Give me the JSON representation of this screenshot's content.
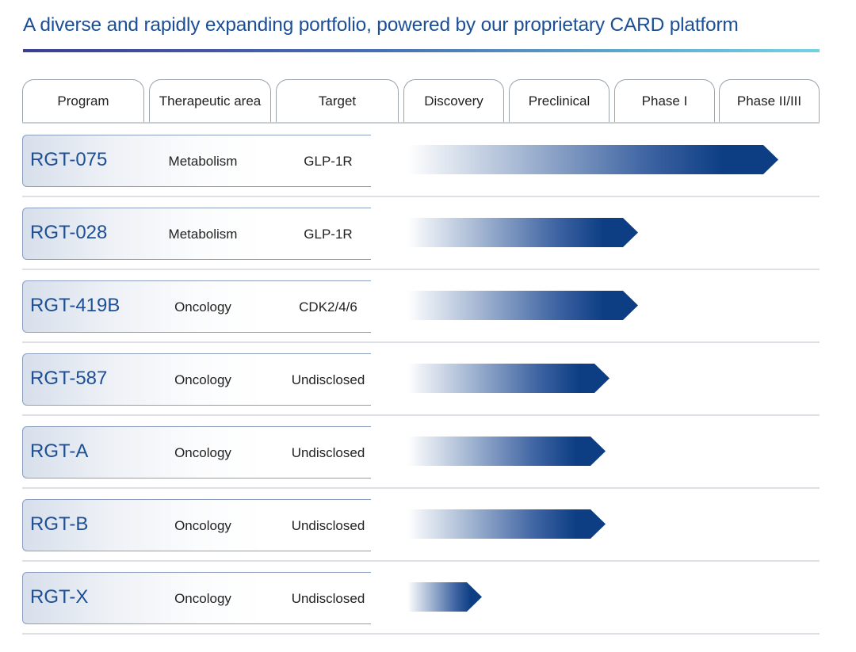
{
  "title": "A diverse and rapidly expanding portfolio, powered by our proprietary CARD platform",
  "columns": [
    {
      "label": "Program"
    },
    {
      "label": "Therapeutic area"
    },
    {
      "label": "Target"
    },
    {
      "label": "Discovery"
    },
    {
      "label": "Preclinical"
    },
    {
      "label": "Phase I"
    },
    {
      "label": "Phase II/III"
    }
  ],
  "programs": [
    {
      "name": "RGT-075",
      "area": "Metabolism",
      "target": "GLP-1R",
      "progress": 0.9
    },
    {
      "name": "RGT-028",
      "area": "Metabolism",
      "target": "GLP-1R",
      "progress": 0.56
    },
    {
      "name": "RGT-419B",
      "area": "Oncology",
      "target": "CDK2/4/6",
      "progress": 0.56
    },
    {
      "name": "RGT-587",
      "area": "Oncology",
      "target": "Undisclosed",
      "progress": 0.49
    },
    {
      "name": "RGT-A",
      "area": "Oncology",
      "target": "Undisclosed",
      "progress": 0.48
    },
    {
      "name": "RGT-B",
      "area": "Oncology",
      "target": "Undisclosed",
      "progress": 0.48
    },
    {
      "name": "RGT-X",
      "area": "Oncology",
      "target": "Undisclosed",
      "progress": 0.18
    }
  ],
  "colors": {
    "title": "#1c4f96",
    "bar_dark": "#0d3e84",
    "program_text": "#1c4f96"
  }
}
